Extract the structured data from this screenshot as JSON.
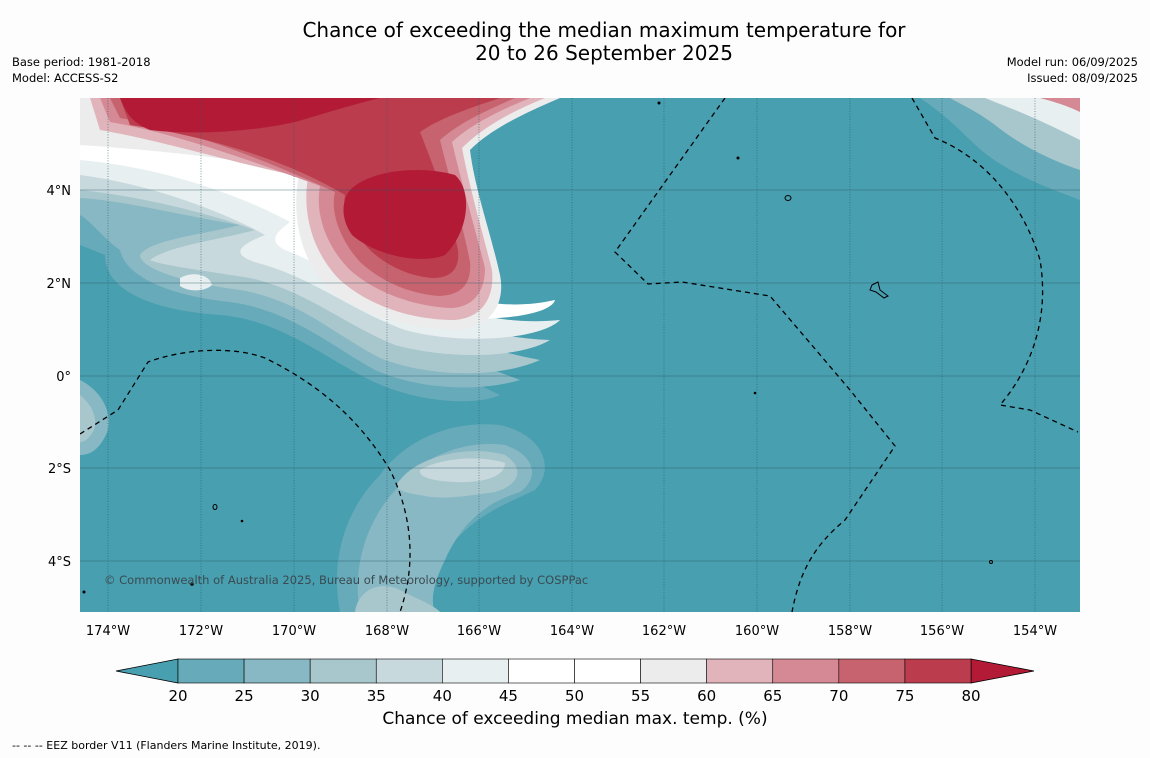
{
  "header": {
    "title_line1": "Chance of exceeding the median maximum temperature for",
    "title_line2": "20 to 26 September 2025",
    "base_period": "Base period: 1981-2018",
    "model": "Model: ACCESS-S2",
    "model_run": "Model run: 06/09/2025",
    "issued": "Issued: 08/09/2025"
  },
  "map": {
    "copyright": "© Commonwealth of Australia 2025, Bureau of Meteorology, supported by COSPPac",
    "lon_labels": [
      "174°W",
      "172°W",
      "170°W",
      "168°W",
      "166°W",
      "164°W",
      "162°W",
      "160°W",
      "158°W",
      "156°W",
      "154°W"
    ],
    "lat_labels": [
      "4°N",
      "2°N",
      "0°",
      "2°S",
      "4°S"
    ],
    "colors": {
      "below_20": "#479fb0",
      "bins": [
        "#67aab9",
        "#88b8c4",
        "#a8c7cd",
        "#c8d9dd",
        "#e7eff0",
        "#ffffff",
        "#ffffff",
        "#ececed",
        "#e0b4ba",
        "#d48994",
        "#c7636e",
        "#ba3c4d"
      ],
      "above_80": "#b21a36"
    }
  },
  "colorbar": {
    "ticks": [
      "20",
      "25",
      "30",
      "35",
      "40",
      "45",
      "50",
      "55",
      "60",
      "65",
      "70",
      "75",
      "80"
    ],
    "label": "Chance of exceeding median max. temp. (%)"
  },
  "footnote": "--  --  -- EEZ border V11 (Flanders Marine Institute, 2019)."
}
